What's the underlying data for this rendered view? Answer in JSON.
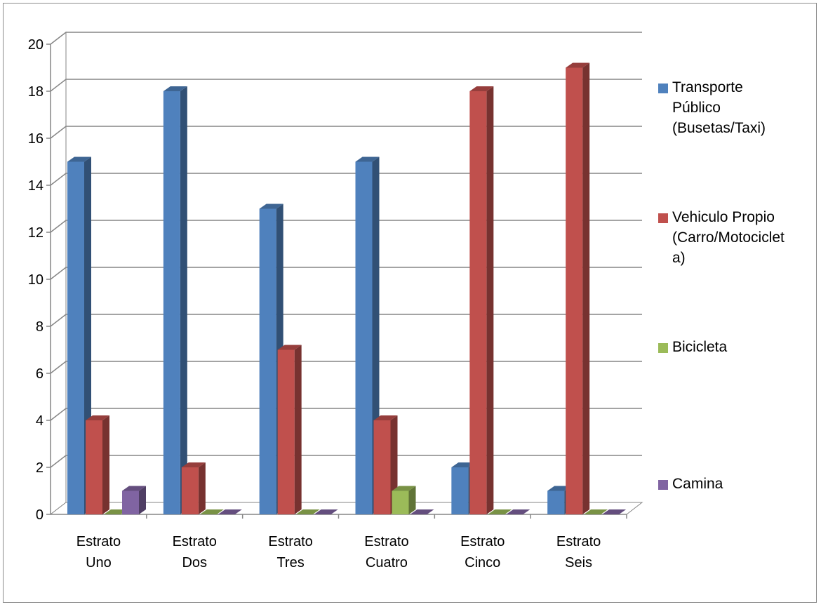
{
  "chart_data": {
    "type": "bar",
    "title": "",
    "xlabel": "",
    "ylabel": "",
    "ylim": [
      0,
      20
    ],
    "ytick_step": 2,
    "yticks": [
      "0",
      "2",
      "4",
      "6",
      "8",
      "10",
      "12",
      "14",
      "16",
      "18",
      "20"
    ],
    "categories": [
      "Estrato Uno",
      "Estrato Dos",
      "Estrato Tres",
      "Estrato Cuatro",
      "Estrato Cinco",
      "Estrato Seis"
    ],
    "category_lines": [
      [
        "Estrato",
        "Uno"
      ],
      [
        "Estrato",
        "Dos"
      ],
      [
        "Estrato",
        "Tres"
      ],
      [
        "Estrato",
        "Cuatro"
      ],
      [
        "Estrato",
        "Cinco"
      ],
      [
        "Estrato",
        "Seis"
      ]
    ],
    "series": [
      {
        "name": "Transporte Público (Busetas/Taxi)",
        "legend_text": "Transporte\nPúblico\n(Busetas/Taxi)",
        "color": "#4f81bd",
        "values": [
          15,
          18,
          13,
          15,
          2,
          1
        ]
      },
      {
        "name": "Vehiculo Propio (Carro/Motocicleta)",
        "legend_text": "Vehiculo Propio\n(Carro/Motociclet\na)",
        "color": "#c0504d",
        "values": [
          4,
          2,
          7,
          4,
          18,
          19
        ]
      },
      {
        "name": "Bicicleta",
        "legend_text": "Bicicleta",
        "color": "#9bbb59",
        "values": [
          0,
          0,
          0,
          1,
          0,
          0
        ]
      },
      {
        "name": "Camina",
        "legend_text": "Camina",
        "color": "#8064a2",
        "values": [
          1,
          0,
          0,
          0,
          0,
          0
        ]
      }
    ],
    "grid": true,
    "legend_position": "right",
    "style": "3d-clustered-column"
  }
}
